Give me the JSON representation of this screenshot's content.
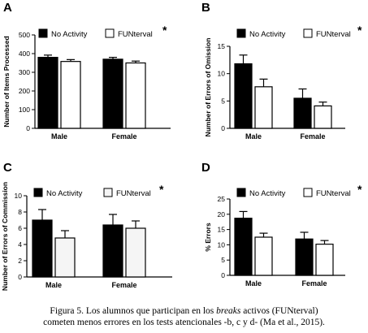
{
  "chart_data": [
    {
      "type": "bar",
      "panel_letter": "A",
      "significance": "*",
      "ylabel": "Number of Items Processed",
      "ylim": [
        0,
        500
      ],
      "yticks": [
        0,
        100,
        200,
        300,
        400,
        500
      ],
      "categories": [
        "Male",
        "Female"
      ],
      "series": [
        {
          "name": "No Activity",
          "color": "#000000",
          "values": [
            380,
            370
          ],
          "errors": [
            12,
            10
          ]
        },
        {
          "name": "FUNterval",
          "color": "#ffffff",
          "values": [
            358,
            350
          ],
          "errors": [
            10,
            10
          ]
        }
      ],
      "legend": "top"
    },
    {
      "type": "bar",
      "panel_letter": "B",
      "significance": "*",
      "ylabel": "Number of Errors of Omission",
      "ylim": [
        0,
        15
      ],
      "yticks": [
        0,
        5,
        10,
        15
      ],
      "categories": [
        "Male",
        "Female"
      ],
      "series": [
        {
          "name": "No Activity",
          "color": "#000000",
          "values": [
            11.8,
            5.5
          ],
          "errors": [
            1.6,
            1.7
          ]
        },
        {
          "name": "FUNterval",
          "color": "#ffffff",
          "values": [
            7.6,
            4.1
          ],
          "errors": [
            1.4,
            0.7
          ]
        }
      ],
      "legend": "top"
    },
    {
      "type": "bar",
      "panel_letter": "C",
      "significance": "*",
      "ylabel": "Number of Errors of Commission",
      "ylim": [
        0,
        10
      ],
      "yticks": [
        0,
        2,
        4,
        6,
        8,
        10
      ],
      "categories": [
        "Male",
        "Female"
      ],
      "series": [
        {
          "name": "No Activity",
          "color": "#000000",
          "values": [
            7.0,
            6.4
          ],
          "errors": [
            1.3,
            1.3
          ]
        },
        {
          "name": "FUNterval",
          "color": "#f5f5f5",
          "values": [
            4.8,
            6.0
          ],
          "errors": [
            0.9,
            0.9
          ]
        }
      ],
      "legend": "top"
    },
    {
      "type": "bar",
      "panel_letter": "D",
      "significance": "*",
      "ylabel": "% Errors",
      "ylim": [
        0,
        25
      ],
      "yticks": [
        0,
        5,
        10,
        15,
        20,
        25
      ],
      "categories": [
        "Male",
        "Female"
      ],
      "series": [
        {
          "name": "No Activity",
          "color": "#000000",
          "values": [
            18.7,
            11.9
          ],
          "errors": [
            2.2,
            2.2
          ]
        },
        {
          "name": "FUNterval",
          "color": "#ffffff",
          "values": [
            12.5,
            10.2
          ],
          "errors": [
            1.3,
            1.2
          ]
        }
      ],
      "legend": "top"
    }
  ],
  "caption": {
    "line1_before": "Figura 5. Los alumnos que participan en los ",
    "line1_italic": "breaks",
    "line1_after": " activos (FUNterval)",
    "line2": "cometen menos errores en los tests atencionales -b, c y d- (Ma et al., 2015)."
  }
}
